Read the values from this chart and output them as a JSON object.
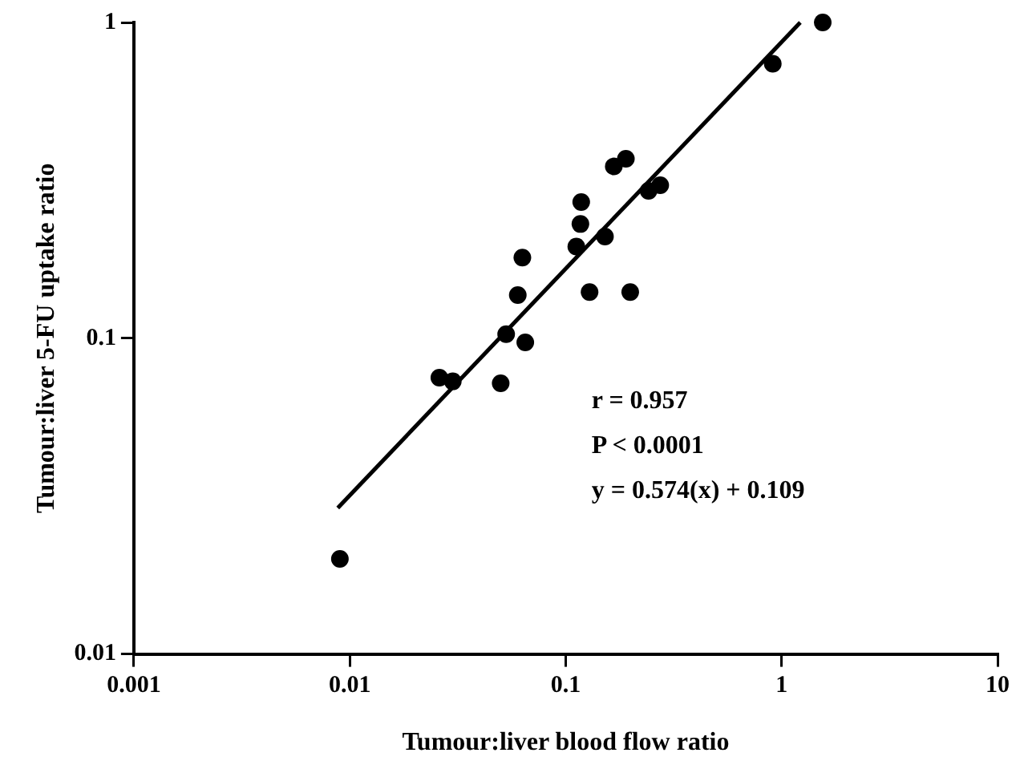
{
  "chart_data": {
    "type": "scatter",
    "xlabel": "Tumour:liver blood flow ratio",
    "ylabel": "Tumour:liver 5-FU uptake ratio",
    "log": "xy",
    "xlim": [
      0.001,
      10
    ],
    "xticks": [
      0.001,
      0.01,
      0.1,
      1,
      10
    ],
    "ylim": [
      0.01,
      1
    ],
    "yticks": [
      0.01,
      0.1,
      1
    ],
    "grid": false,
    "legend": false,
    "marker": "circle",
    "annotations": [
      "r = 0.957",
      "P < 0.0001",
      "y = 0.574(x) + 0.109"
    ],
    "series": [
      {
        "type": "scatter",
        "color": "#000000",
        "x": [
          1.55,
          0.91,
          0.19,
          0.167,
          0.274,
          0.242,
          0.118,
          0.117,
          0.152,
          0.112,
          0.063,
          0.06,
          0.129,
          0.199,
          0.053,
          0.065,
          0.026,
          0.03,
          0.05,
          0.009
        ],
        "values": [
          1.0,
          0.74,
          0.37,
          0.35,
          0.305,
          0.293,
          0.27,
          0.23,
          0.21,
          0.195,
          0.18,
          0.137,
          0.14,
          0.14,
          0.103,
          0.097,
          0.075,
          0.073,
          0.072,
          0.02
        ]
      },
      {
        "type": "line",
        "color": "#000000",
        "marker": "none",
        "x": [
          0.0088,
          1.22
        ],
        "values": [
          0.029,
          1.0
        ]
      }
    ]
  }
}
